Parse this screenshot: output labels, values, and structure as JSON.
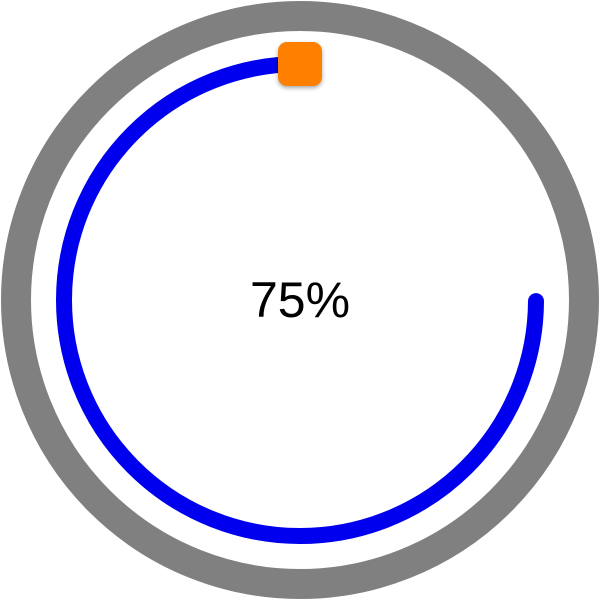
{
  "progress": {
    "value": 0.75,
    "label": "75%"
  },
  "colors": {
    "track": "#808080",
    "progress": "#0000ee",
    "handle": "#ff8000",
    "text": "#000000"
  },
  "icons": {
    "handle": "rounded-square-handle"
  }
}
